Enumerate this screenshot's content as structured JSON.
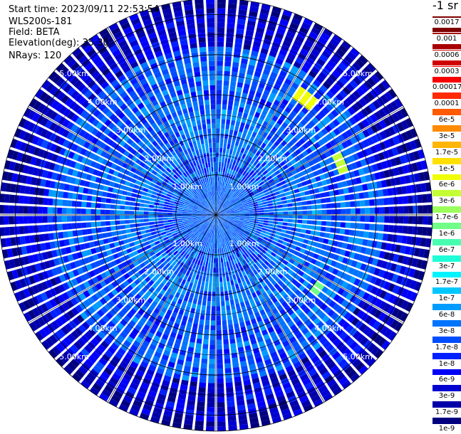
{
  "info": {
    "start_time": "Start time: 2023/09/11 22:53:54",
    "instrument": "WLS200s-181",
    "field": "Field: BETA",
    "elevation": "Elevation(deg): 35.30",
    "nrays": "NRays: 120"
  },
  "colorbar": {
    "unit": "-1 sr",
    "ticks": [
      "0.0017",
      "0.001",
      "0.0006",
      "0.0003",
      "0.00017",
      "0.0001",
      "6e-5",
      "3e-5",
      "1.7e-5",
      "1e-5",
      "6e-6",
      "3e-6",
      "1.7e-6",
      "1e-6",
      "6e-7",
      "3e-7",
      "1.7e-7",
      "1e-7",
      "6e-8",
      "3e-8",
      "1.7e-8",
      "1e-8",
      "6e-9",
      "3e-9",
      "1.7e-9",
      "1e-9"
    ],
    "colors": [
      "#7f0000",
      "#a80000",
      "#d10000",
      "#f80000",
      "#ff2a00",
      "#ff5a00",
      "#ff8a00",
      "#ffb600",
      "#ffe000",
      "#f0ff07",
      "#c4ff33",
      "#9bff5c",
      "#70ff87",
      "#48ffb0",
      "#1effd8",
      "#00f4ff",
      "#00c8ff",
      "#009cff",
      "#0074ff",
      "#004cff",
      "#0020ff",
      "#0000fa",
      "#0000d0",
      "#0000a8",
      "#00007f"
    ]
  },
  "chart_data": {
    "type": "heatmap",
    "projection": "polar-ppi",
    "field": "BETA",
    "n_rays": 120,
    "range_rings_km": [
      1,
      2,
      3,
      4,
      5
    ],
    "range_labels": [
      "1.00km",
      "2.00km",
      "3.00km",
      "4.00km",
      "5.00km"
    ],
    "max_range_km": 5.4,
    "spoke_angles_deg": [
      0,
      30,
      60,
      90,
      120,
      150,
      180,
      210,
      240,
      270,
      300,
      330
    ],
    "value_scale": "log",
    "value_range": [
      1e-09,
      0.0017
    ],
    "background_log10": -7.6,
    "features": [
      {
        "azimuth_deg": 36,
        "range_km_from": 3.45,
        "range_km_to": 3.8,
        "log10_beta": -5.1
      },
      {
        "azimuth_deg": 66,
        "range_km_from": 3.2,
        "range_km_to": 3.5,
        "log10_beta": -5.4
      },
      {
        "azimuth_deg": 125,
        "range_km_from": 3.0,
        "range_km_to": 3.2,
        "log10_beta": -5.8
      }
    ]
  }
}
